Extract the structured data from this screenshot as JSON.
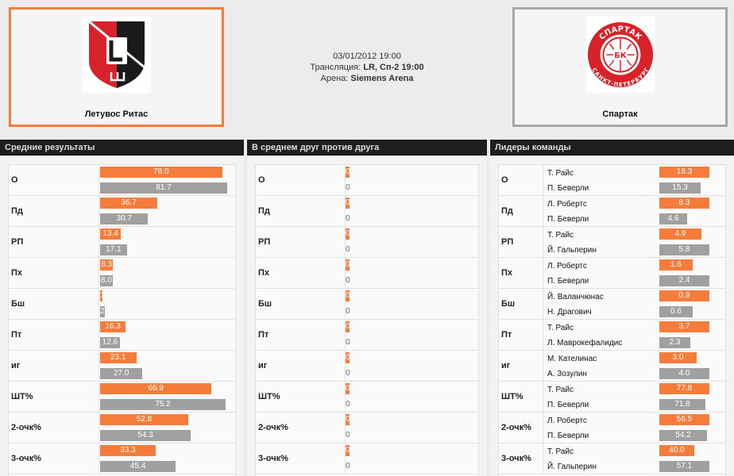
{
  "match": {
    "date": "03/01/2012 19:00",
    "broadcast_label": "Трансляция:",
    "broadcast_value": "LR, Сп-2 19:00",
    "arena_label": "Арена:",
    "arena_value": "Siemens Arena"
  },
  "home_team": {
    "name": "Летувос Ритас"
  },
  "away_team": {
    "name": "Спартак",
    "logo_ring_top": "СПАРТАК",
    "logo_ring_bottom": "САНКТ-ПЕТЕРБУРГ",
    "logo_center": "БК"
  },
  "colors": {
    "home": "#f57c3b",
    "away": "#a0a0a0"
  },
  "panels": {
    "averages": {
      "title": "Средние результаты"
    },
    "h2h": {
      "title": "В среднем друг против друга"
    },
    "leaders": {
      "title": "Лидеры команды"
    }
  },
  "stats": [
    {
      "label": "О",
      "home": "78.0",
      "away": "81.7",
      "h2h_home": "0",
      "h2h_away": "0",
      "leader_home": {
        "name": "Т. Райс",
        "value": "18.3"
      },
      "leader_away": {
        "name": "П. Беверли",
        "value": "15.3"
      }
    },
    {
      "label": "Пд",
      "home": "36.7",
      "away": "30.7",
      "h2h_home": "0",
      "h2h_away": "0",
      "leader_home": {
        "name": "Л. Робертс",
        "value": "8.3"
      },
      "leader_away": {
        "name": "П. Беверли",
        "value": "4.6"
      }
    },
    {
      "label": "РП",
      "home": "13.4",
      "away": "17.1",
      "h2h_home": "0",
      "h2h_away": "0",
      "leader_home": {
        "name": "Т. Райс",
        "value": "4.9"
      },
      "leader_away": {
        "name": "Й. Гальперин",
        "value": "5.8"
      }
    },
    {
      "label": "Пх",
      "home": "8.3",
      "away": "8.0",
      "h2h_home": "0",
      "h2h_away": "0",
      "leader_home": {
        "name": "Л. Робертс",
        "value": "1.6"
      },
      "leader_away": {
        "name": "П. Беверли",
        "value": "2.4"
      }
    },
    {
      "label": "Бш",
      "home": "1.6",
      "away": "2.9",
      "h2h_home": "0",
      "h2h_away": "0",
      "leader_home": {
        "name": "Й. Валанчюнас",
        "value": "0.9"
      },
      "leader_away": {
        "name": "Н. Драгович",
        "value": "0.6"
      }
    },
    {
      "label": "Пт",
      "home": "16.3",
      "away": "12.6",
      "h2h_home": "0",
      "h2h_away": "0",
      "leader_home": {
        "name": "Т. Райс",
        "value": "3.7"
      },
      "leader_away": {
        "name": "Л. Маврокефалидис",
        "value": "2.3"
      }
    },
    {
      "label": "иг",
      "home": "23.1",
      "away": "27.0",
      "h2h_home": "0",
      "h2h_away": "0",
      "leader_home": {
        "name": "М. Кателинас",
        "value": "3.0"
      },
      "leader_away": {
        "name": "А. Зозулин",
        "value": "4.0"
      }
    },
    {
      "label": "ШТ%",
      "home": "66.9",
      "away": "75.2",
      "h2h_home": "0",
      "h2h_away": "0",
      "leader_home": {
        "name": "Т. Райс",
        "value": "77.8"
      },
      "leader_away": {
        "name": "П. Беверли",
        "value": "71.8"
      }
    },
    {
      "label": "2-очк%",
      "home": "52.8",
      "away": "54.3",
      "h2h_home": "0",
      "h2h_away": "0",
      "leader_home": {
        "name": "Л. Робертс",
        "value": "56.5"
      },
      "leader_away": {
        "name": "П. Беверли",
        "value": "54.2"
      }
    },
    {
      "label": "3-очк%",
      "home": "33.3",
      "away": "45.4",
      "h2h_home": "0",
      "h2h_away": "0",
      "leader_home": {
        "name": "Т. Райс",
        "value": "40.0"
      },
      "leader_away": {
        "name": "Й. Гальперин",
        "value": "57.1"
      }
    }
  ]
}
